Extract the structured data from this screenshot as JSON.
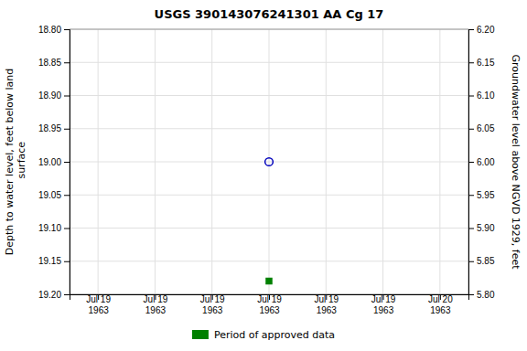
{
  "chart_data": {
    "type": "scatter",
    "title": "USGS 390143076241301 AA Cg  17",
    "y_label": "Depth to water level, feet below land\n surface",
    "y2_label": "Groundwater level above NGVD 1929, feet",
    "categories": [
      "Jul 19\n1963",
      "Jul 19\n1963",
      "Jul 19\n1963",
      "Jul 19\n1963",
      "Jul 19\n1963",
      "Jul 19\n1963",
      "Jul 20\n1963"
    ],
    "series": [
      {
        "color": "#0000bb",
        "marker": "circle-open",
        "values": [
          null,
          null,
          null,
          19.0,
          null,
          null,
          null
        ]
      },
      {
        "name": "Period of approved data",
        "color": "#008000",
        "marker": "square",
        "values": [
          null,
          null,
          null,
          19.18,
          null,
          null,
          null
        ]
      }
    ],
    "ylim": [
      19.2,
      18.8
    ],
    "yticks": [
      {
        "value": 18.8,
        "label": "18.80"
      },
      {
        "value": 18.85,
        "label": "18.85"
      },
      {
        "value": 18.9,
        "label": "18.90"
      },
      {
        "value": 18.95,
        "label": "18.95"
      },
      {
        "value": 19.0,
        "label": "19.00"
      },
      {
        "value": 19.05,
        "label": "19.05"
      },
      {
        "value": 19.1,
        "label": "19.10"
      },
      {
        "value": 19.15,
        "label": "19.15"
      },
      {
        "value": 19.2,
        "label": "19.20"
      }
    ],
    "y2lim": [
      5.8,
      6.2
    ],
    "y2ticks": [
      {
        "value": 6.2,
        "label": "6.20"
      },
      {
        "value": 6.15,
        "label": "6.15"
      },
      {
        "value": 6.1,
        "label": "6.10"
      },
      {
        "value": 6.05,
        "label": "6.05"
      },
      {
        "value": 6.0,
        "label": "6.00"
      },
      {
        "value": 5.95,
        "label": "5.95"
      },
      {
        "value": 5.9,
        "label": "5.90"
      },
      {
        "value": 5.85,
        "label": "5.85"
      },
      {
        "value": 5.8,
        "label": "5.80"
      }
    ],
    "grid": true,
    "legend": "bottom"
  }
}
